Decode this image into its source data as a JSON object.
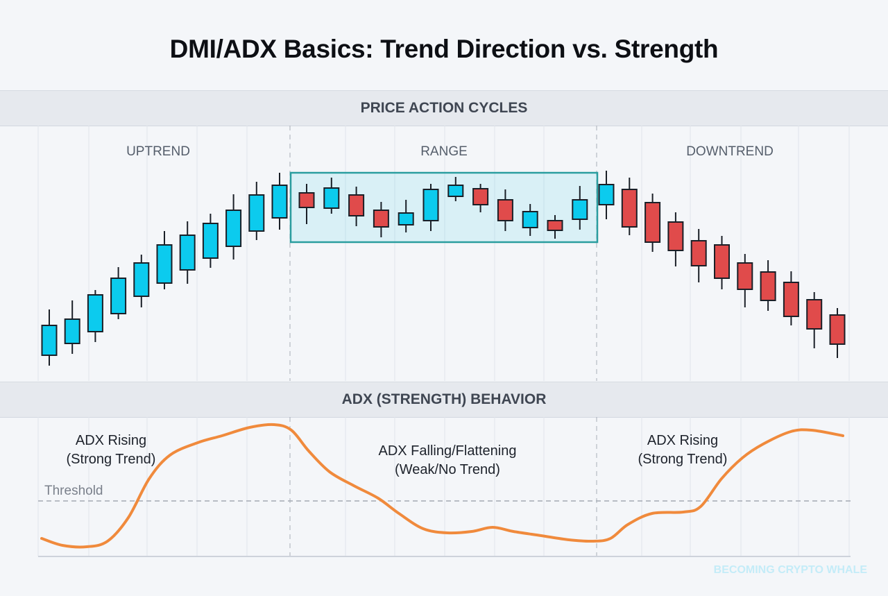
{
  "title": "DMI/ADX Basics: Trend Direction vs. Strength",
  "sections": {
    "price": "PRICE ACTION CYCLES",
    "adx": "ADX (STRENGTH) BEHAVIOR"
  },
  "phases": [
    "UPTREND",
    "RANGE",
    "DOWNTREND"
  ],
  "adx_labels": [
    {
      "line1": "ADX Rising",
      "line2": "(Strong Trend)"
    },
    {
      "line1": "ADX Falling/Flattening",
      "line2": "(Weak/No Trend)"
    },
    {
      "line1": "ADX Rising",
      "line2": "(Strong Trend)"
    }
  ],
  "threshold_label": "Threshold",
  "watermark": "BECOMING CRYPTO WHALE",
  "colors": {
    "bull": "#0ccbee",
    "bear": "#e04b4b",
    "adx": "#f08a3c",
    "range_box": "#2a9d9f"
  },
  "chart_data": [
    {
      "type": "candlestick",
      "title": "PRICE ACTION CYCLES",
      "phases": [
        "UPTREND",
        "RANGE",
        "DOWNTREND"
      ],
      "ylim": [
        0,
        320
      ],
      "candles": [
        {
          "o": 48,
          "h": 114,
          "l": 33,
          "c": 91
        },
        {
          "o": 65,
          "h": 127,
          "l": 50,
          "c": 100
        },
        {
          "o": 82,
          "h": 142,
          "l": 67,
          "c": 135
        },
        {
          "o": 108,
          "h": 175,
          "l": 100,
          "c": 159
        },
        {
          "o": 133,
          "h": 193,
          "l": 117,
          "c": 181
        },
        {
          "o": 152,
          "h": 227,
          "l": 143,
          "c": 207
        },
        {
          "o": 171,
          "h": 241,
          "l": 151,
          "c": 221
        },
        {
          "o": 188,
          "h": 252,
          "l": 174,
          "c": 238
        },
        {
          "o": 205,
          "h": 280,
          "l": 186,
          "c": 257
        },
        {
          "o": 227,
          "h": 298,
          "l": 214,
          "c": 279
        },
        {
          "o": 246,
          "h": 311,
          "l": 229,
          "c": 293
        },
        {
          "o": 282,
          "h": 295,
          "l": 237,
          "c": 261
        },
        {
          "o": 260,
          "h": 304,
          "l": 252,
          "c": 289
        },
        {
          "o": 279,
          "h": 291,
          "l": 234,
          "c": 249
        },
        {
          "o": 257,
          "h": 269,
          "l": 218,
          "c": 233
        },
        {
          "o": 236,
          "h": 272,
          "l": 225,
          "c": 253
        },
        {
          "o": 242,
          "h": 295,
          "l": 227,
          "c": 287
        },
        {
          "o": 277,
          "h": 305,
          "l": 270,
          "c": 293
        },
        {
          "o": 288,
          "h": 295,
          "l": 254,
          "c": 265
        },
        {
          "o": 272,
          "h": 287,
          "l": 227,
          "c": 242
        },
        {
          "o": 232,
          "h": 266,
          "l": 220,
          "c": 255
        },
        {
          "o": 242,
          "h": 250,
          "l": 216,
          "c": 228
        },
        {
          "o": 244,
          "h": 292,
          "l": 229,
          "c": 272
        },
        {
          "o": 265,
          "h": 314,
          "l": 244,
          "c": 294
        },
        {
          "o": 287,
          "h": 304,
          "l": 221,
          "c": 233
        },
        {
          "o": 268,
          "h": 281,
          "l": 197,
          "c": 211
        },
        {
          "o": 240,
          "h": 254,
          "l": 176,
          "c": 199
        },
        {
          "o": 213,
          "h": 230,
          "l": 153,
          "c": 177
        },
        {
          "o": 207,
          "h": 220,
          "l": 143,
          "c": 159
        },
        {
          "o": 181,
          "h": 194,
          "l": 117,
          "c": 143
        },
        {
          "o": 168,
          "h": 185,
          "l": 112,
          "c": 127
        },
        {
          "o": 153,
          "h": 169,
          "l": 91,
          "c": 104
        },
        {
          "o": 128,
          "h": 139,
          "l": 58,
          "c": 86
        },
        {
          "o": 106,
          "h": 116,
          "l": 44,
          "c": 64
        }
      ],
      "phase_sizes": [
        11,
        12,
        11
      ]
    },
    {
      "type": "line",
      "title": "ADX (STRENGTH) BEHAVIOR",
      "series": [
        {
          "values": [
            13,
            8,
            7,
            11,
            28,
            56,
            73,
            82,
            87,
            93,
            95,
            91,
            76,
            61,
            51,
            42,
            31,
            20,
            17,
            18,
            21,
            18,
            15,
            12,
            11,
            13,
            23,
            31,
            32,
            36,
            56,
            71,
            81,
            90,
            91,
            87
          ]
        }
      ],
      "threshold": 40,
      "threshold_label": "Threshold",
      "ylim": [
        0,
        100
      ]
    }
  ]
}
